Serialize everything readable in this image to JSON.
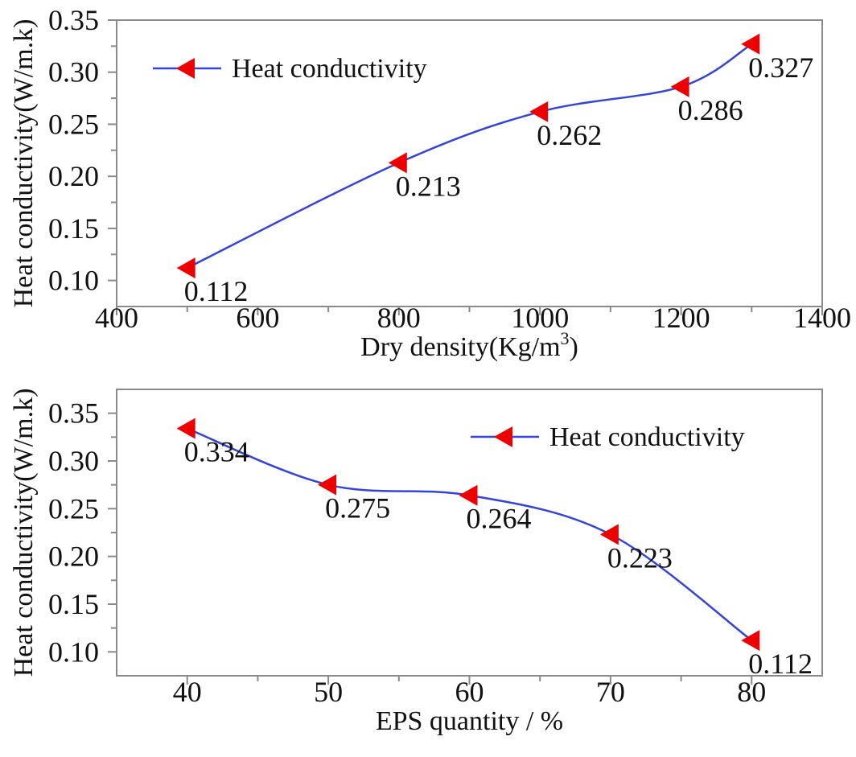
{
  "chart_data": [
    {
      "type": "line",
      "xlabel": "Dry density(Kg/m",
      "xlabel_sup": "3",
      "xlabel_end": ")",
      "ylabel": "Heat conductivity(W/m.k)",
      "xlim": [
        400,
        1400
      ],
      "ylim": [
        0.075,
        0.35
      ],
      "xticks": [
        400,
        600,
        800,
        1000,
        1200,
        1400
      ],
      "xtick_labels": [
        "400",
        "600",
        "800",
        "1000",
        "1200",
        "1400"
      ],
      "yticks": [
        0.1,
        0.15,
        0.2,
        0.25,
        0.3,
        0.35
      ],
      "ytick_labels": [
        "0.10",
        "0.15",
        "0.20",
        "0.25",
        "0.30",
        "0.35"
      ],
      "grid": false,
      "legend_placement": "top-left",
      "series": [
        {
          "name": "Heat conductivity",
          "x": [
            500,
            800,
            1000,
            1200,
            1300
          ],
          "y": [
            0.112,
            0.213,
            0.262,
            0.286,
            0.327
          ],
          "labels": [
            "0.112",
            "0.213",
            "0.262",
            "0.286",
            "0.327"
          ],
          "line_color": "#3344dd",
          "marker_color": "#ee0000",
          "marker": "triangle-left",
          "smooth": true
        }
      ]
    },
    {
      "type": "line",
      "xlabel": "EPS quantity / %",
      "ylabel": "Heat conductivity(W/m.k)",
      "xlim": [
        35,
        85
      ],
      "ylim": [
        0.075,
        0.375
      ],
      "xticks": [
        40,
        50,
        60,
        70,
        80
      ],
      "xtick_labels": [
        "40",
        "50",
        "60",
        "70",
        "80"
      ],
      "yticks": [
        0.1,
        0.15,
        0.2,
        0.25,
        0.3,
        0.35
      ],
      "ytick_labels": [
        "0.10",
        "0.15",
        "0.20",
        "0.25",
        "0.30",
        "0.35"
      ],
      "grid": false,
      "legend_placement": "top-right",
      "series": [
        {
          "name": "Heat conductivity",
          "x": [
            40,
            50,
            60,
            70,
            80
          ],
          "y": [
            0.334,
            0.275,
            0.264,
            0.223,
            0.112
          ],
          "labels": [
            "0.334",
            "0.275",
            "0.264",
            "0.223",
            "0.112"
          ],
          "line_color": "#3344dd",
          "marker_color": "#ee0000",
          "marker": "triangle-left",
          "smooth": true
        }
      ]
    }
  ]
}
